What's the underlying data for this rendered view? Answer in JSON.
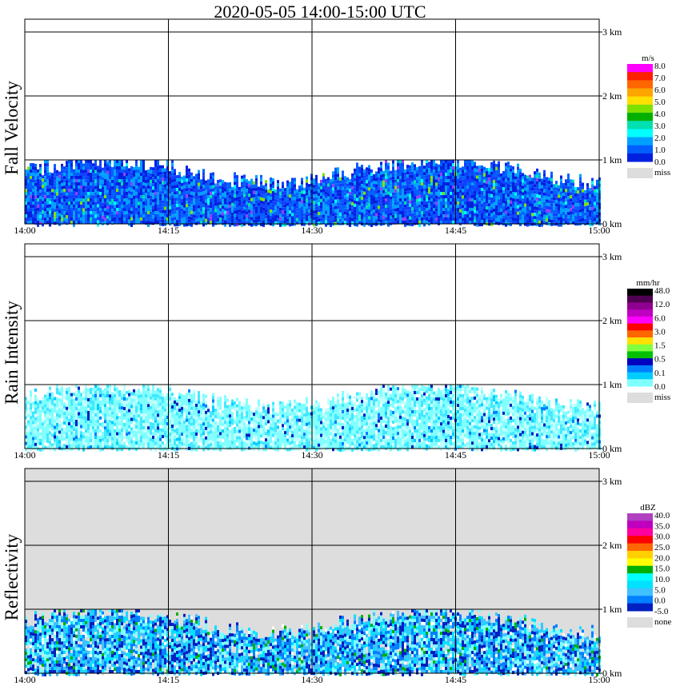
{
  "title": "2020-05-05   14:00-15:00 UTC",
  "x_ticks": [
    "14:00",
    "14:15",
    "14:30",
    "14:45",
    "15:00"
  ],
  "y_ticks": [
    "0 km",
    "1 km",
    "2 km",
    "3 km"
  ],
  "chart_data": [
    {
      "type": "heatmap",
      "ylabel": "Fall Velocity",
      "x_range": [
        "14:00",
        "15:00"
      ],
      "y_range_km": [
        0,
        3.2
      ],
      "background": "#ffffff",
      "colorbar": {
        "unit": "m/s",
        "labels": [
          "8.0",
          "7.0",
          "6.0",
          "5.0",
          "4.0",
          "3.0",
          "2.0",
          "1.0",
          "0.0"
        ],
        "colors": [
          "#ff00ff",
          "#ff2000",
          "#ff6600",
          "#ffa500",
          "#ffe000",
          "#80e000",
          "#00b000",
          "#00e0b0",
          "#00ffff",
          "#00a0ff",
          "#0060ff",
          "#0020e0"
        ],
        "missing_label": "miss"
      },
      "echo": {
        "base_km": 0.5,
        "top_km": 0.95,
        "dominant": [
          "#0020e0",
          "#0060ff",
          "#00a0ff",
          "#1040ff"
        ],
        "sparse": [
          "#00e0b0",
          "#80e000",
          "#00ffff",
          "#9040ff"
        ]
      }
    },
    {
      "type": "heatmap",
      "ylabel": "Rain Intensity",
      "x_range": [
        "14:00",
        "15:00"
      ],
      "y_range_km": [
        0,
        3.2
      ],
      "background": "#ffffff",
      "colorbar": {
        "unit": "mm/hr",
        "labels": [
          "48.0",
          "12.0",
          "6.0",
          "3.0",
          "1.5",
          "0.5",
          "0.1",
          "0.0"
        ],
        "colors": [
          "#000000",
          "#500050",
          "#900090",
          "#c000c0",
          "#ff00ff",
          "#ff0000",
          "#ff6600",
          "#ffe000",
          "#80ff40",
          "#00c000",
          "#0000c0",
          "#0080ff",
          "#00ccff",
          "#80ffff"
        ],
        "missing_label": "miss"
      },
      "echo": {
        "base_km": 0.55,
        "top_km": 0.95,
        "dominant": [
          "#80ffff",
          "#80ffff",
          "#40e8ff",
          "#c0ffff"
        ],
        "sparse": [
          "#00ccff",
          "#0080ff",
          "#0020c0"
        ]
      }
    },
    {
      "type": "heatmap",
      "ylabel": "Reflectivity",
      "x_range": [
        "14:00",
        "15:00"
      ],
      "y_range_km": [
        0,
        3.2
      ],
      "background": "#dddddd",
      "colorbar": {
        "unit": "dBZ",
        "labels": [
          "40.0",
          "35.0",
          "30.0",
          "25.0",
          "20.0",
          "15.0",
          "10.0",
          "5.0",
          "0.0",
          "-5.0"
        ],
        "colors": [
          "#b040c0",
          "#c000c0",
          "#ff00a0",
          "#ff0000",
          "#ff6600",
          "#ffd000",
          "#ffff00",
          "#00b000",
          "#00ffff",
          "#00e0ff",
          "#40c0ff",
          "#0080ff",
          "#0020c0"
        ],
        "missing_label": "none"
      },
      "echo": {
        "base_km": 0.55,
        "top_km": 0.95,
        "dominant": [
          "#0020c0",
          "#0080ff",
          "#40c0ff",
          "#00e0ff",
          "#80ffff"
        ],
        "sparse": [
          "#00b000",
          "#ffffff"
        ]
      }
    }
  ]
}
